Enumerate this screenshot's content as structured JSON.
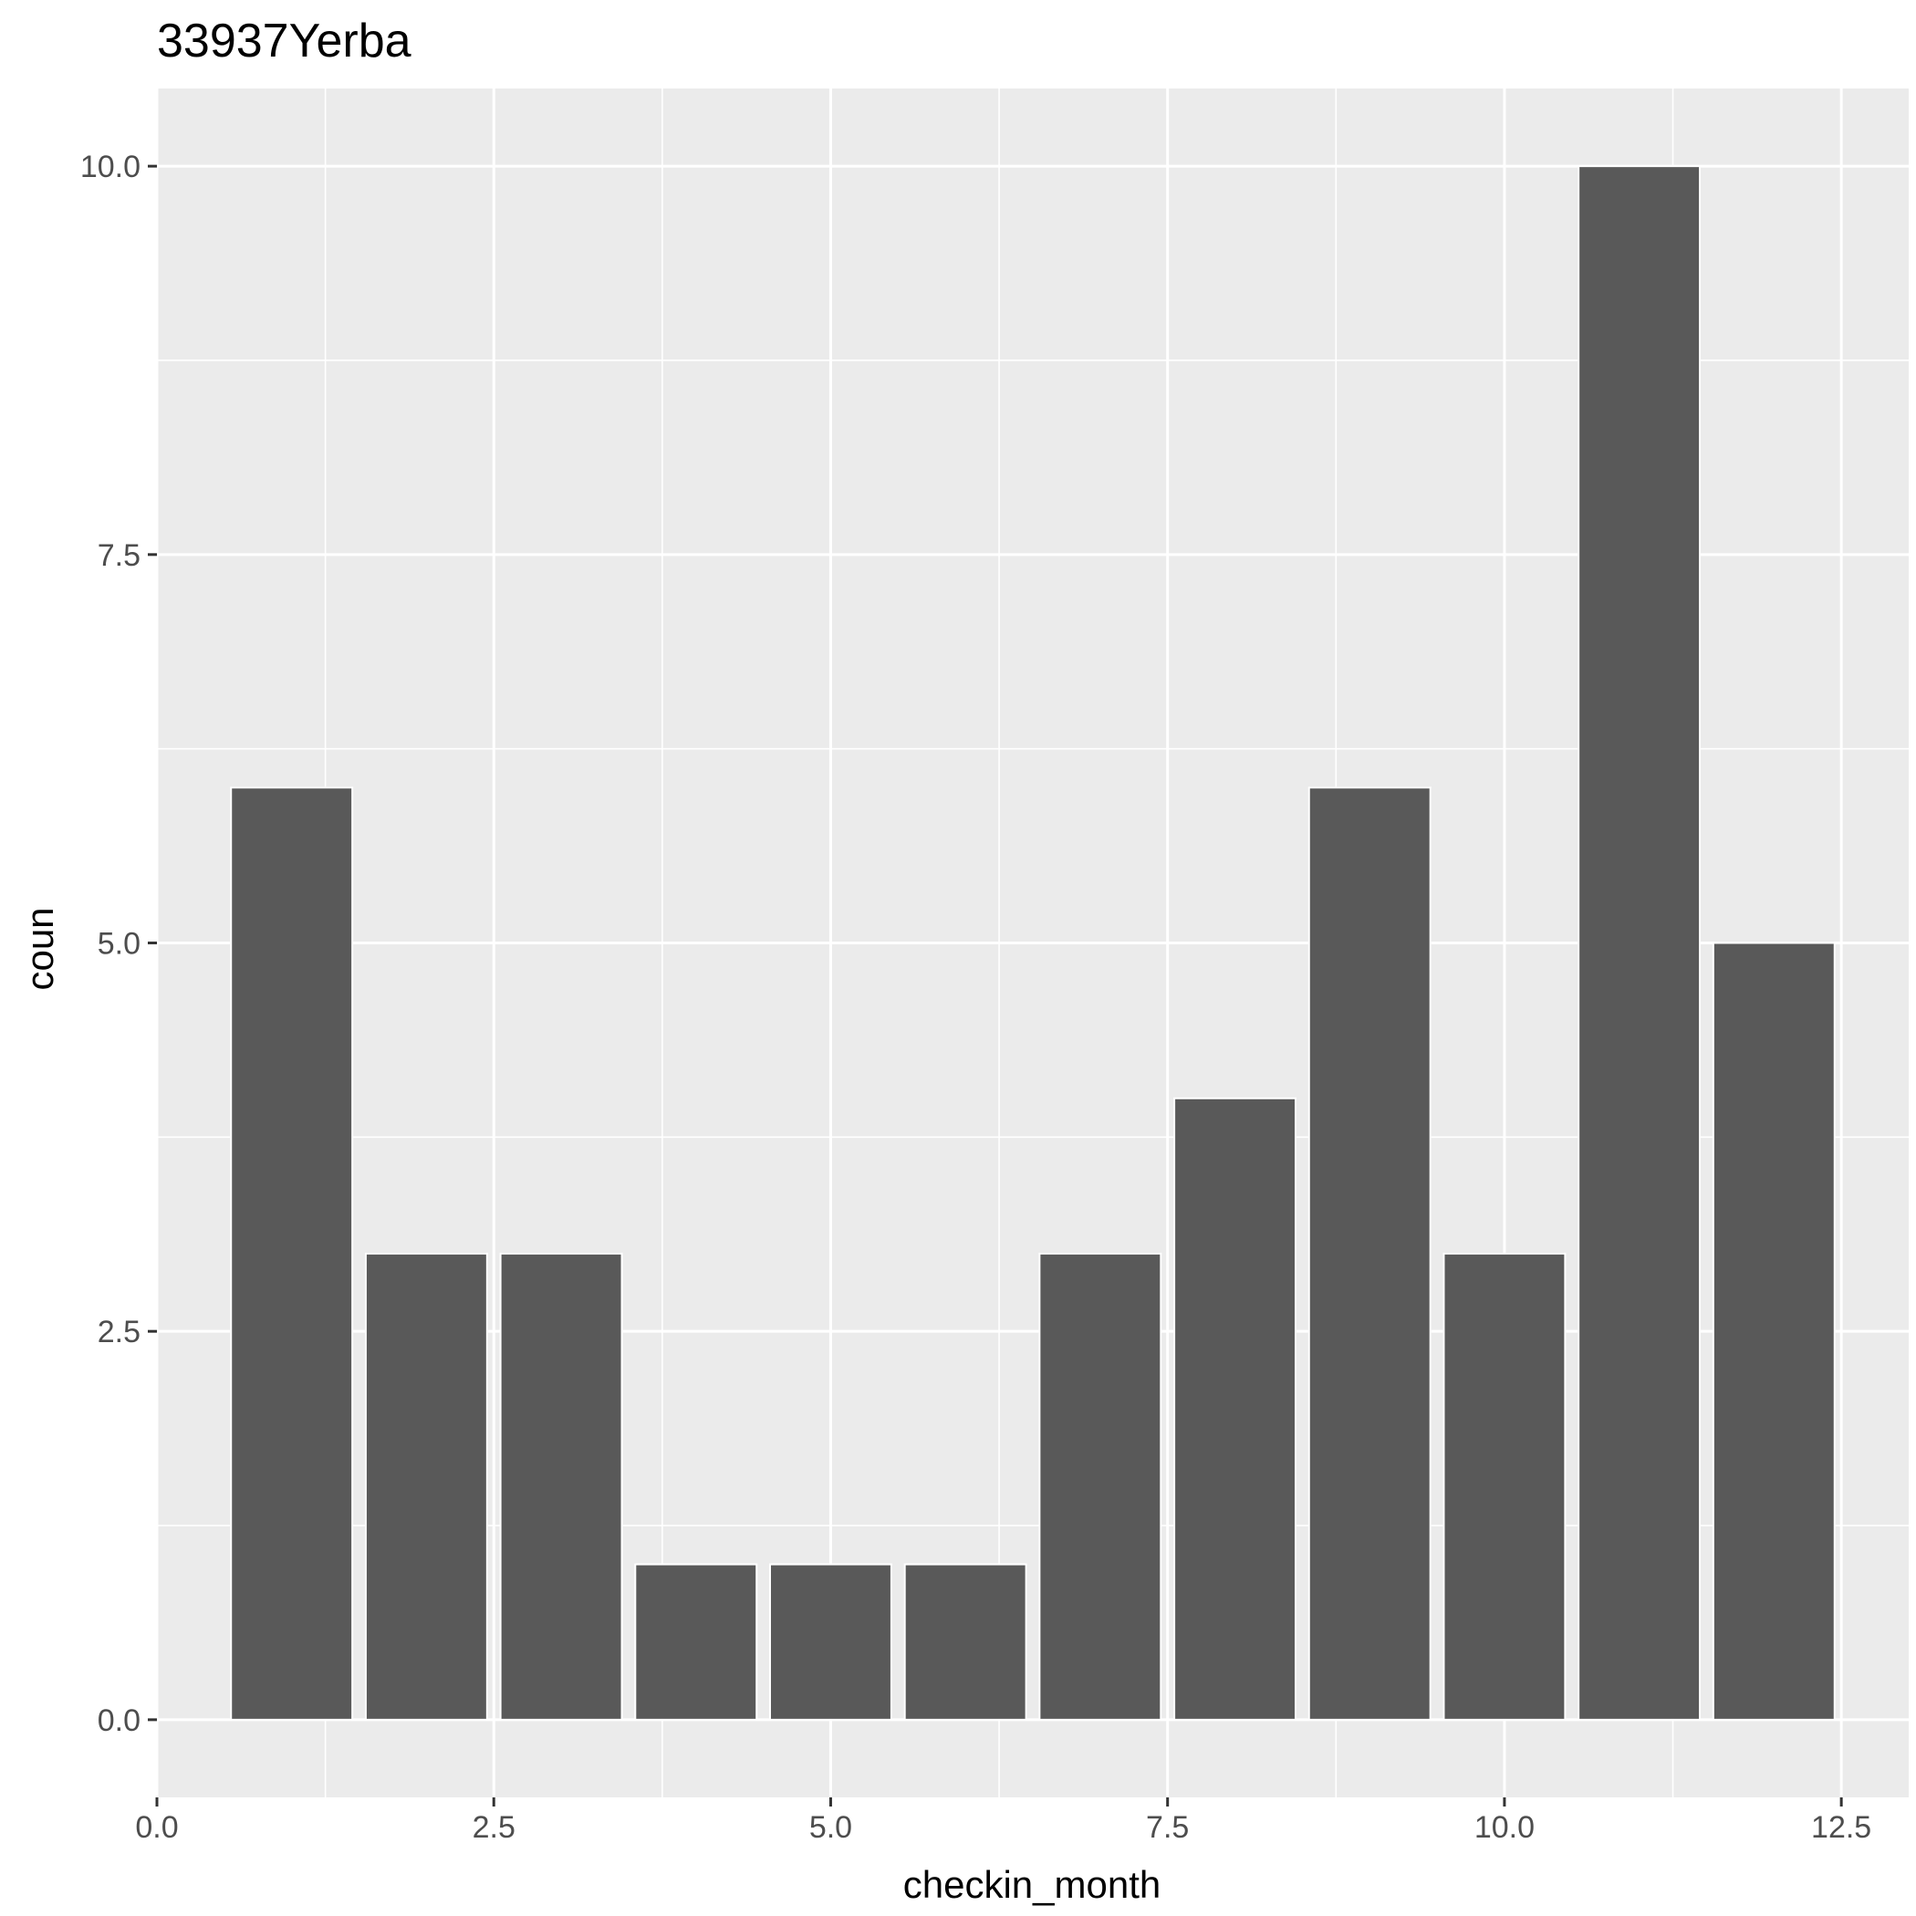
{
  "chart_data": {
    "type": "bar",
    "title": "33937Yerba",
    "xlabel": "checkin_month",
    "ylabel": "coun",
    "x": [
      1,
      2,
      3,
      4,
      5,
      6,
      7,
      8,
      9,
      10,
      11,
      12
    ],
    "values": [
      6,
      3,
      3,
      1,
      1,
      1,
      3,
      4,
      6,
      3,
      10,
      5
    ],
    "xlim": [
      0,
      13
    ],
    "ylim": [
      -0.5,
      10.5
    ],
    "x_ticks": [
      0,
      2.5,
      5,
      7.5,
      10,
      12.5
    ],
    "x_tick_labels": [
      "0.0",
      "2.5",
      "5.0",
      "7.5",
      "10.0",
      "12.5"
    ],
    "y_ticks": [
      0,
      2.5,
      5,
      7.5,
      10
    ],
    "y_tick_labels": [
      "0.0",
      "2.5",
      "5.0",
      "7.5",
      "10.0"
    ],
    "grid": true,
    "colors": {
      "bar": "#595959",
      "panel_background": "#ebebeb",
      "grid_line": "#ffffff",
      "tick_text": "#4d4d4d",
      "axis_tick": "#333333"
    }
  }
}
